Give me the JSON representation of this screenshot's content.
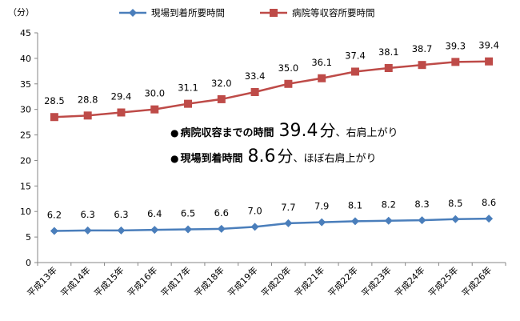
{
  "chart_data": {
    "type": "line",
    "ylabel": "（分）",
    "ylim": [
      0,
      45
    ],
    "yticks": [
      0,
      5,
      10,
      15,
      20,
      25,
      30,
      35,
      40,
      45
    ],
    "grid": false,
    "legend_position": "top",
    "categories": [
      "平成13年",
      "平成14年",
      "平成15年",
      "平成16年",
      "平成17年",
      "平成18年",
      "平成19年",
      "平成20年",
      "平成21年",
      "平成22年",
      "平成23年",
      "平成24年",
      "平成25年",
      "平成26年"
    ],
    "series": [
      {
        "name": "現場到着所要時間",
        "color": "#4a7ebb",
        "marker": "diamond",
        "values": [
          6.2,
          6.3,
          6.3,
          6.4,
          6.5,
          6.6,
          7.0,
          7.7,
          7.9,
          8.1,
          8.2,
          8.3,
          8.5,
          8.6
        ],
        "labels": [
          "6.2",
          "6.3",
          "6.3",
          "6.4",
          "6.5",
          "6.6",
          "7.0",
          "7.7",
          "7.9",
          "8.1",
          "8.2",
          "8.3",
          "8.5",
          "8.6"
        ]
      },
      {
        "name": "病院等収容所要時間",
        "color": "#be4b48",
        "marker": "square",
        "values": [
          28.5,
          28.8,
          29.4,
          30.0,
          31.1,
          32.0,
          33.4,
          35.0,
          36.1,
          37.4,
          38.1,
          38.7,
          39.3,
          39.4
        ],
        "labels": [
          "28.5",
          "28.8",
          "29.4",
          "30.0",
          "31.1",
          "32.0",
          "33.4",
          "35.0",
          "36.1",
          "37.4",
          "38.1",
          "38.7",
          "39.3",
          "39.4"
        ]
      }
    ]
  },
  "annotations": [
    {
      "bullet": "●",
      "label": "病院収容までの時間",
      "value": "39.4",
      "unit": "分",
      "tail": "、右肩上がり"
    },
    {
      "bullet": "●",
      "label": "現場到着時間",
      "value": "8.6",
      "unit": "分",
      "tail": "、ほぼ右肩上がり"
    }
  ]
}
